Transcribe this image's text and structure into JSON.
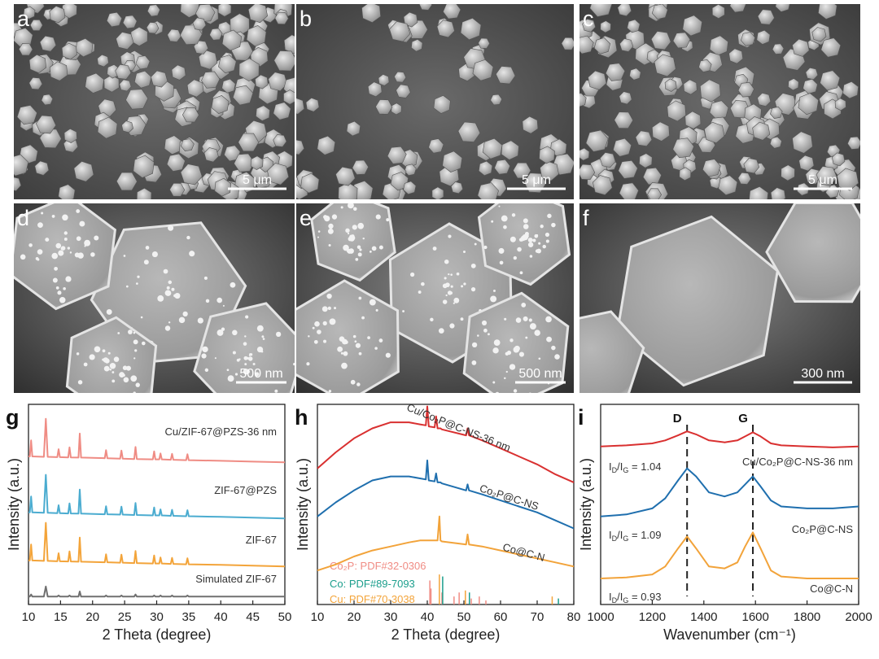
{
  "images": [
    {
      "label": "a",
      "scale_bar": "5 μm"
    },
    {
      "label": "b",
      "scale_bar": "5 μm"
    },
    {
      "label": "c",
      "scale_bar": "5 μm"
    },
    {
      "label": "d",
      "scale_bar": "500 nm"
    },
    {
      "label": "e",
      "scale_bar": "500 nm"
    },
    {
      "label": "f",
      "scale_bar": "300 nm"
    }
  ],
  "chart_data": [
    {
      "type": "line",
      "panel_label": "g",
      "x_label": "2 Theta (degree)",
      "y_label": "Intensity (a.u.)",
      "xlim": [
        10,
        50
      ],
      "xticks": [
        10,
        15,
        20,
        25,
        30,
        35,
        40,
        45,
        50
      ],
      "ylim": [
        0,
        100
      ],
      "x": [
        10,
        10.2,
        10.4,
        10.6,
        12.4,
        12.7,
        13.0,
        14.5,
        14.7,
        14.9,
        16.2,
        16.4,
        16.6,
        17.8,
        18.0,
        18.2,
        21.9,
        22.1,
        22.3,
        24.3,
        24.5,
        24.7,
        26.5,
        26.7,
        26.9,
        29.4,
        29.6,
        29.8,
        30.4,
        30.6,
        30.8,
        32.2,
        32.4,
        32.6,
        34.6,
        34.8,
        35.0,
        40,
        45,
        50
      ],
      "series": [
        {
          "name": "Cu/ZIF-67@PZS-36 nm",
          "color": "#ef8c84",
          "values": [
            74,
            74,
            82,
            74,
            73.8,
            92.8,
            73.8,
            73.6,
            77.6,
            73.6,
            73.5,
            78.5,
            73.5,
            73.4,
            85.4,
            73.4,
            73.1,
            77.1,
            73.1,
            72.9,
            76.9,
            72.9,
            72.7,
            78.7,
            72.7,
            72.5,
            76.5,
            72.5,
            72.5,
            75.5,
            72.5,
            72.3,
            75.3,
            72.3,
            72.1,
            75.1,
            72.1,
            71.8,
            71.4,
            71
          ]
        },
        {
          "name": "ZIF-67@PZS",
          "color": "#4bacd0",
          "values": [
            46,
            46,
            54,
            46,
            45.8,
            64.8,
            45.8,
            45.6,
            49.6,
            45.6,
            45.5,
            50.5,
            45.5,
            45.4,
            57.4,
            45.4,
            45.1,
            49.1,
            45.1,
            44.9,
            48.9,
            44.9,
            44.7,
            50.7,
            44.7,
            44.5,
            48.5,
            44.5,
            44.5,
            47.5,
            44.5,
            44.3,
            47.3,
            44.3,
            44.1,
            47.1,
            44.1,
            43.8,
            43.4,
            43
          ]
        },
        {
          "name": "ZIF-67",
          "color": "#f3a43a",
          "values": [
            22,
            22,
            30,
            22,
            21.8,
            40.8,
            21.8,
            21.6,
            25.6,
            21.6,
            21.5,
            26.5,
            21.5,
            21.4,
            33.4,
            21.4,
            21.1,
            25.1,
            21.1,
            20.9,
            24.9,
            20.9,
            20.7,
            26.7,
            20.7,
            20.5,
            24.5,
            20.5,
            20.5,
            23.5,
            20.5,
            20.3,
            23.3,
            20.3,
            20.1,
            23.1,
            20.1,
            19.8,
            19.4,
            19
          ]
        },
        {
          "name": "Simulated ZIF-67",
          "color": "#707070",
          "values": [
            4,
            4,
            5,
            4,
            4,
            9,
            4,
            4,
            4.5,
            4,
            4,
            4.5,
            4,
            4,
            6.5,
            4,
            4,
            4.5,
            4,
            4,
            4.5,
            4,
            4,
            5,
            4,
            4,
            4.5,
            4,
            4,
            4.5,
            4,
            4,
            4.5,
            4,
            4,
            4.5,
            4,
            4,
            4,
            4
          ]
        }
      ]
    },
    {
      "type": "line",
      "panel_label": "h",
      "x_label": "2 Theta (degree)",
      "y_label": "Intensity (a.u.)",
      "xlim": [
        10,
        80
      ],
      "xticks": [
        10,
        20,
        30,
        40,
        50,
        60,
        70,
        80
      ],
      "ylim": [
        0,
        100
      ],
      "x": [
        10,
        15,
        20,
        25,
        30,
        35,
        38,
        39.6,
        40,
        40.4,
        42,
        42.4,
        42.8,
        43.3,
        43.6,
        44,
        50.6,
        51,
        51.4,
        55,
        60,
        65,
        70,
        75,
        80
      ],
      "series": [
        {
          "name": "Cu/Co₂P@C-NS-36 nm",
          "color": "#d93030",
          "values": [
            68,
            76,
            83,
            88,
            91,
            91,
            90,
            89.5,
            99,
            89,
            88.5,
            94,
            88,
            88,
            88,
            87.5,
            84.5,
            88,
            84.5,
            82,
            78,
            74,
            70,
            65,
            61
          ]
        },
        {
          "name": "Co₂P@C-NS",
          "color": "#1f6fae",
          "values": [
            44,
            51,
            57,
            62,
            64,
            64,
            63,
            62.5,
            72,
            62,
            61.5,
            65.5,
            61,
            61,
            61,
            60.5,
            57,
            60,
            57,
            55,
            52,
            49,
            46,
            42,
            38
          ]
        },
        {
          "name": "Co@C-N",
          "color": "#f2a33a",
          "values": [
            17,
            20,
            24,
            27,
            29,
            31,
            32,
            32,
            32,
            32,
            32,
            32,
            32,
            44,
            32,
            31.5,
            30,
            35,
            30,
            29,
            27,
            25,
            23,
            21,
            19
          ]
        }
      ],
      "references": [
        {
          "name": "Co₂P: PDF#32-0306",
          "color": "#f08c84",
          "x": [
            40.7,
            41.0,
            44.0,
            47.3,
            48.7,
            52.0,
            54.2,
            56.0
          ],
          "values": [
            12,
            8,
            6,
            4,
            6,
            3,
            4,
            2
          ]
        },
        {
          "name": "Co: PDF#89-7093",
          "color": "#1b9e8c",
          "x": [
            44.2,
            51.5,
            75.8
          ],
          "values": [
            14,
            6,
            3
          ]
        },
        {
          "name": "Cu: PDF#70-3038",
          "color": "#f3a43a",
          "x": [
            43.3,
            50.4,
            74.1
          ],
          "values": [
            15,
            7,
            4
          ]
        }
      ]
    },
    {
      "type": "line",
      "panel_label": "i",
      "x_label": "Wavenumber (cm⁻¹)",
      "y_label": "Intensity (a.u.)",
      "xlim": [
        1000,
        2000
      ],
      "xticks": [
        1000,
        1200,
        1400,
        1600,
        1800,
        2000
      ],
      "ylim": [
        0,
        100
      ],
      "x": [
        1000,
        1100,
        1200,
        1250,
        1300,
        1335,
        1370,
        1420,
        1480,
        1530,
        1560,
        1590,
        1620,
        1660,
        1700,
        1800,
        1900,
        2000
      ],
      "series": [
        {
          "name": "Cu/Co₂P@C-NS-36 nm",
          "color": "#d93030",
          "values": [
            79,
            79.5,
            80.5,
            82,
            84.5,
            86.5,
            85,
            82,
            81,
            82,
            84,
            86,
            84,
            80.5,
            79.5,
            79,
            78.5,
            79
          ]
        },
        {
          "name": "Co₂P@C-NS",
          "color": "#1f6fae",
          "values": [
            44,
            45,
            48,
            53,
            62,
            68,
            64,
            56,
            54,
            56,
            60,
            64,
            59,
            52,
            49,
            48,
            48,
            49
          ]
        },
        {
          "name": "Co@C-N",
          "color": "#f2a33a",
          "values": [
            13,
            13.5,
            15,
            19,
            28,
            34,
            28,
            19,
            18,
            21,
            29,
            36,
            28,
            17,
            14,
            13,
            13,
            13
          ]
        }
      ],
      "vlines": [
        {
          "x": 1335,
          "label": "D"
        },
        {
          "x": 1590,
          "label": "G"
        }
      ],
      "annotations": [
        {
          "parts": [
            "I",
            "D",
            "/I",
            "G",
            " = 1.04"
          ]
        },
        {
          "parts": [
            "I",
            "D",
            "/I",
            "G",
            " = 1.09"
          ]
        },
        {
          "parts": [
            "I",
            "D",
            "/I",
            "G",
            " = 0.93"
          ]
        }
      ]
    }
  ]
}
